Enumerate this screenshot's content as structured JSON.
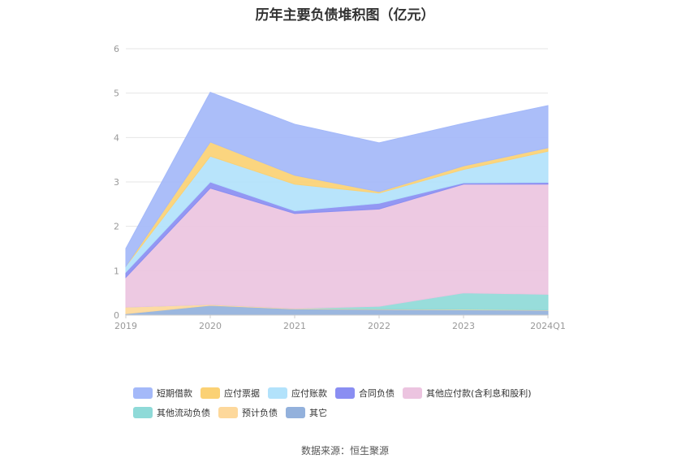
{
  "footer": {
    "source": "数据来源：恒生聚源"
  },
  "chart_data": {
    "type": "area",
    "stacked": true,
    "title": "历年主要负债堆积图（亿元）",
    "categories": [
      "2019",
      "2020",
      "2021",
      "2022",
      "2023",
      "2024Q1"
    ],
    "ylim": [
      0,
      6
    ],
    "yticks": [
      0,
      1,
      2,
      3,
      4,
      5,
      6
    ],
    "grid": true,
    "legend_position": "bottom",
    "series": [
      {
        "name": "其它",
        "color": "#93b1dc",
        "values": [
          0.03,
          0.22,
          0.14,
          0.13,
          0.12,
          0.11
        ]
      },
      {
        "name": "预计负债",
        "color": "#fdd89b",
        "values": [
          0.15,
          0.02,
          0.01,
          0.01,
          0.01,
          0.01
        ]
      },
      {
        "name": "其他流动负债",
        "color": "#8fdad8",
        "values": [
          0.0,
          0.0,
          0.0,
          0.06,
          0.37,
          0.35
        ]
      },
      {
        "name": "其他应付款(含利息和股利)",
        "color": "#ecc4e0",
        "values": [
          0.67,
          2.62,
          2.14,
          2.19,
          2.45,
          2.48
        ]
      },
      {
        "name": "合同负债",
        "color": "#8a8ef2",
        "values": [
          0.12,
          0.14,
          0.06,
          0.13,
          0.03,
          0.04
        ]
      },
      {
        "name": "应付账款",
        "color": "#b2e2fb",
        "values": [
          0.13,
          0.58,
          0.6,
          0.23,
          0.3,
          0.7
        ]
      },
      {
        "name": "应付票据",
        "color": "#fbd174",
        "values": [
          0.0,
          0.32,
          0.2,
          0.03,
          0.08,
          0.08
        ]
      },
      {
        "name": "短期借款",
        "color": "#a4b9f9",
        "values": [
          0.4,
          1.12,
          1.15,
          1.1,
          0.96,
          0.95
        ]
      }
    ],
    "legend_order": [
      [
        "短期借款",
        "应付票据",
        "应付账款",
        "合同负债",
        "其他应付款(含利息和股利)"
      ],
      [
        "其他流动负债",
        "预计负债",
        "其它"
      ]
    ]
  }
}
